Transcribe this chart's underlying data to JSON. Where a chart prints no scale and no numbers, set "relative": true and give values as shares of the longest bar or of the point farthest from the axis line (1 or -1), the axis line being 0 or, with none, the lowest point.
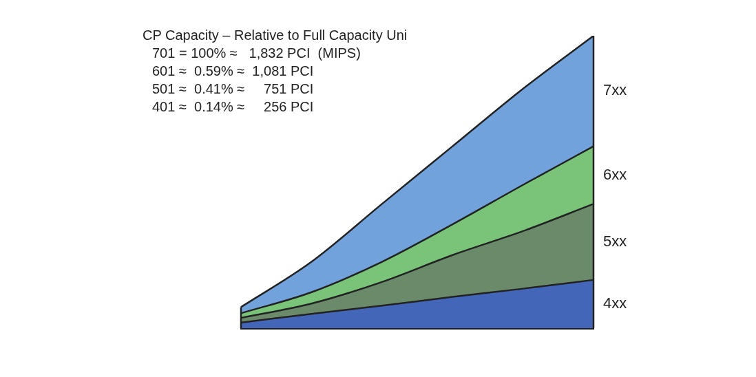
{
  "chart_data": {
    "type": "area",
    "title": "CP Capacity – Relative to Full Capacity Uni",
    "annotations": [
      "701 = 100% ≈   1,832 PCI  (MIPS)",
      "601 ≈  0.59% ≈  1,081 PCI",
      "501 ≈  0.41% ≈     751 PCI",
      "401 ≈  0.14% ≈     256 PCI"
    ],
    "categories": [
      null,
      null,
      null,
      null,
      null,
      null
    ],
    "relative": true,
    "stacked": true,
    "series": [
      {
        "name": "4xx",
        "color": "#4466b8",
        "values": [
          0.019,
          0.049,
          0.077,
          0.107,
          0.135,
          0.165
        ]
      },
      {
        "name": "5xx",
        "color": "#6a8a6a",
        "values": [
          0.016,
          0.035,
          0.081,
          0.143,
          0.197,
          0.26
        ]
      },
      {
        "name": "6xx",
        "color": "#79c479",
        "values": [
          0.016,
          0.039,
          0.069,
          0.105,
          0.158,
          0.197
        ]
      },
      {
        "name": "7xx",
        "color": "#72a2dc",
        "values": [
          0.021,
          0.104,
          0.198,
          0.267,
          0.329,
          0.378
        ]
      }
    ]
  }
}
